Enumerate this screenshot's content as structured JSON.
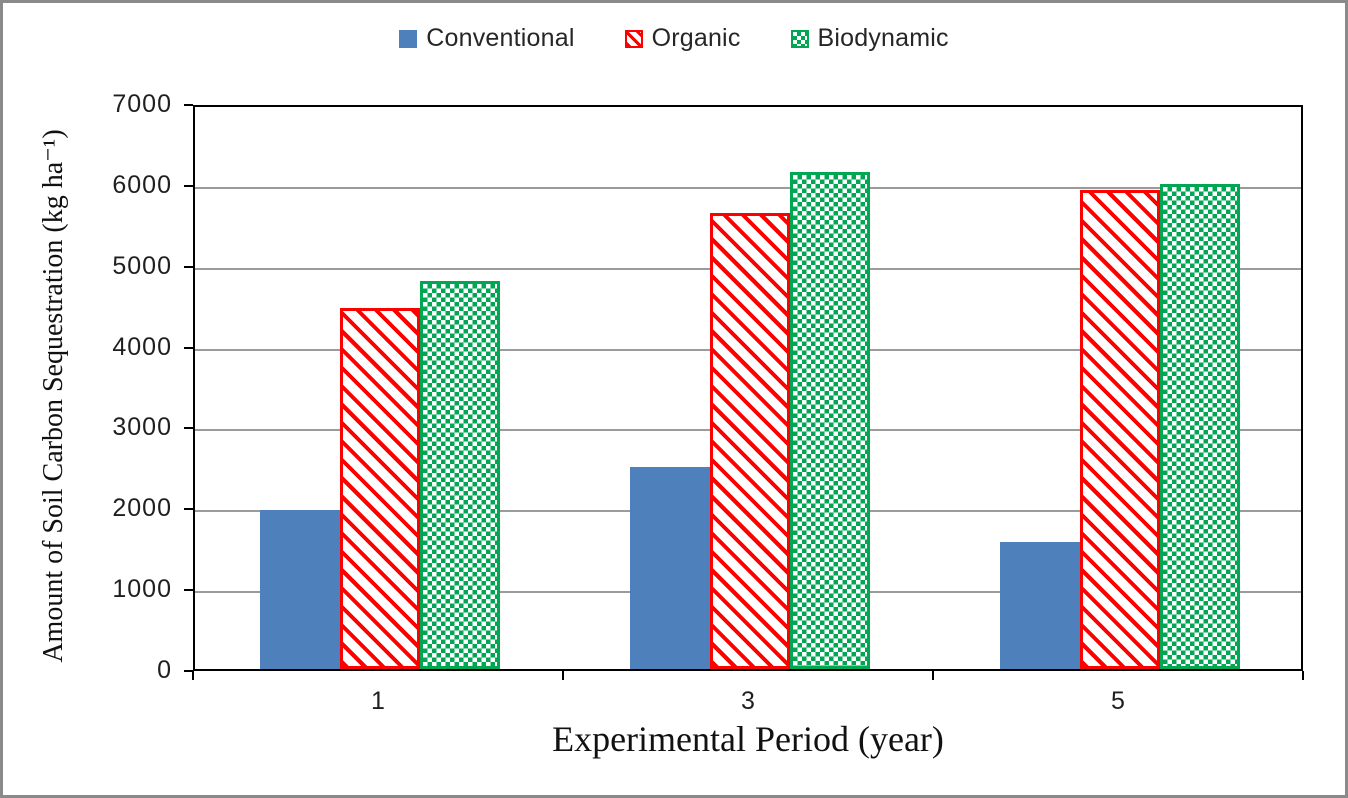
{
  "legend": {
    "items": [
      {
        "label": "Conventional",
        "marker": "blue-solid-square",
        "color": "#4E81BC",
        "pattern": "solid"
      },
      {
        "label": "Organic",
        "marker": "red-striped-square",
        "color": "#FF0000",
        "pattern": "diagonal-stripes"
      },
      {
        "label": "Biodynamic",
        "marker": "green-checker-square",
        "color": "#00A651",
        "pattern": "checkerboard"
      }
    ]
  },
  "chart_data": {
    "type": "bar",
    "title": "",
    "xlabel": "Experimental Period (year)",
    "ylabel": "Amount of Soil Carbon Sequestration (kg ha⁻¹)",
    "categories": [
      "1",
      "3",
      "5"
    ],
    "series": [
      {
        "name": "Conventional",
        "pattern": "solid",
        "color": "#4E81BC",
        "values": [
          1970,
          2500,
          1570
        ]
      },
      {
        "name": "Organic",
        "pattern": "diagonal-stripes",
        "color": "#FF0000",
        "values": [
          4470,
          5640,
          5930
        ]
      },
      {
        "name": "Biodynamic",
        "pattern": "checkerboard",
        "color": "#00A651",
        "values": [
          4800,
          6150,
          6000
        ]
      }
    ],
    "ylim": [
      0,
      7000
    ],
    "yticks": [
      0,
      1000,
      2000,
      3000,
      4000,
      5000,
      6000,
      7000
    ],
    "grid": true,
    "legend_position": "top-center",
    "gridline_color": "#9b9b9b",
    "axis_color": "#000000"
  }
}
